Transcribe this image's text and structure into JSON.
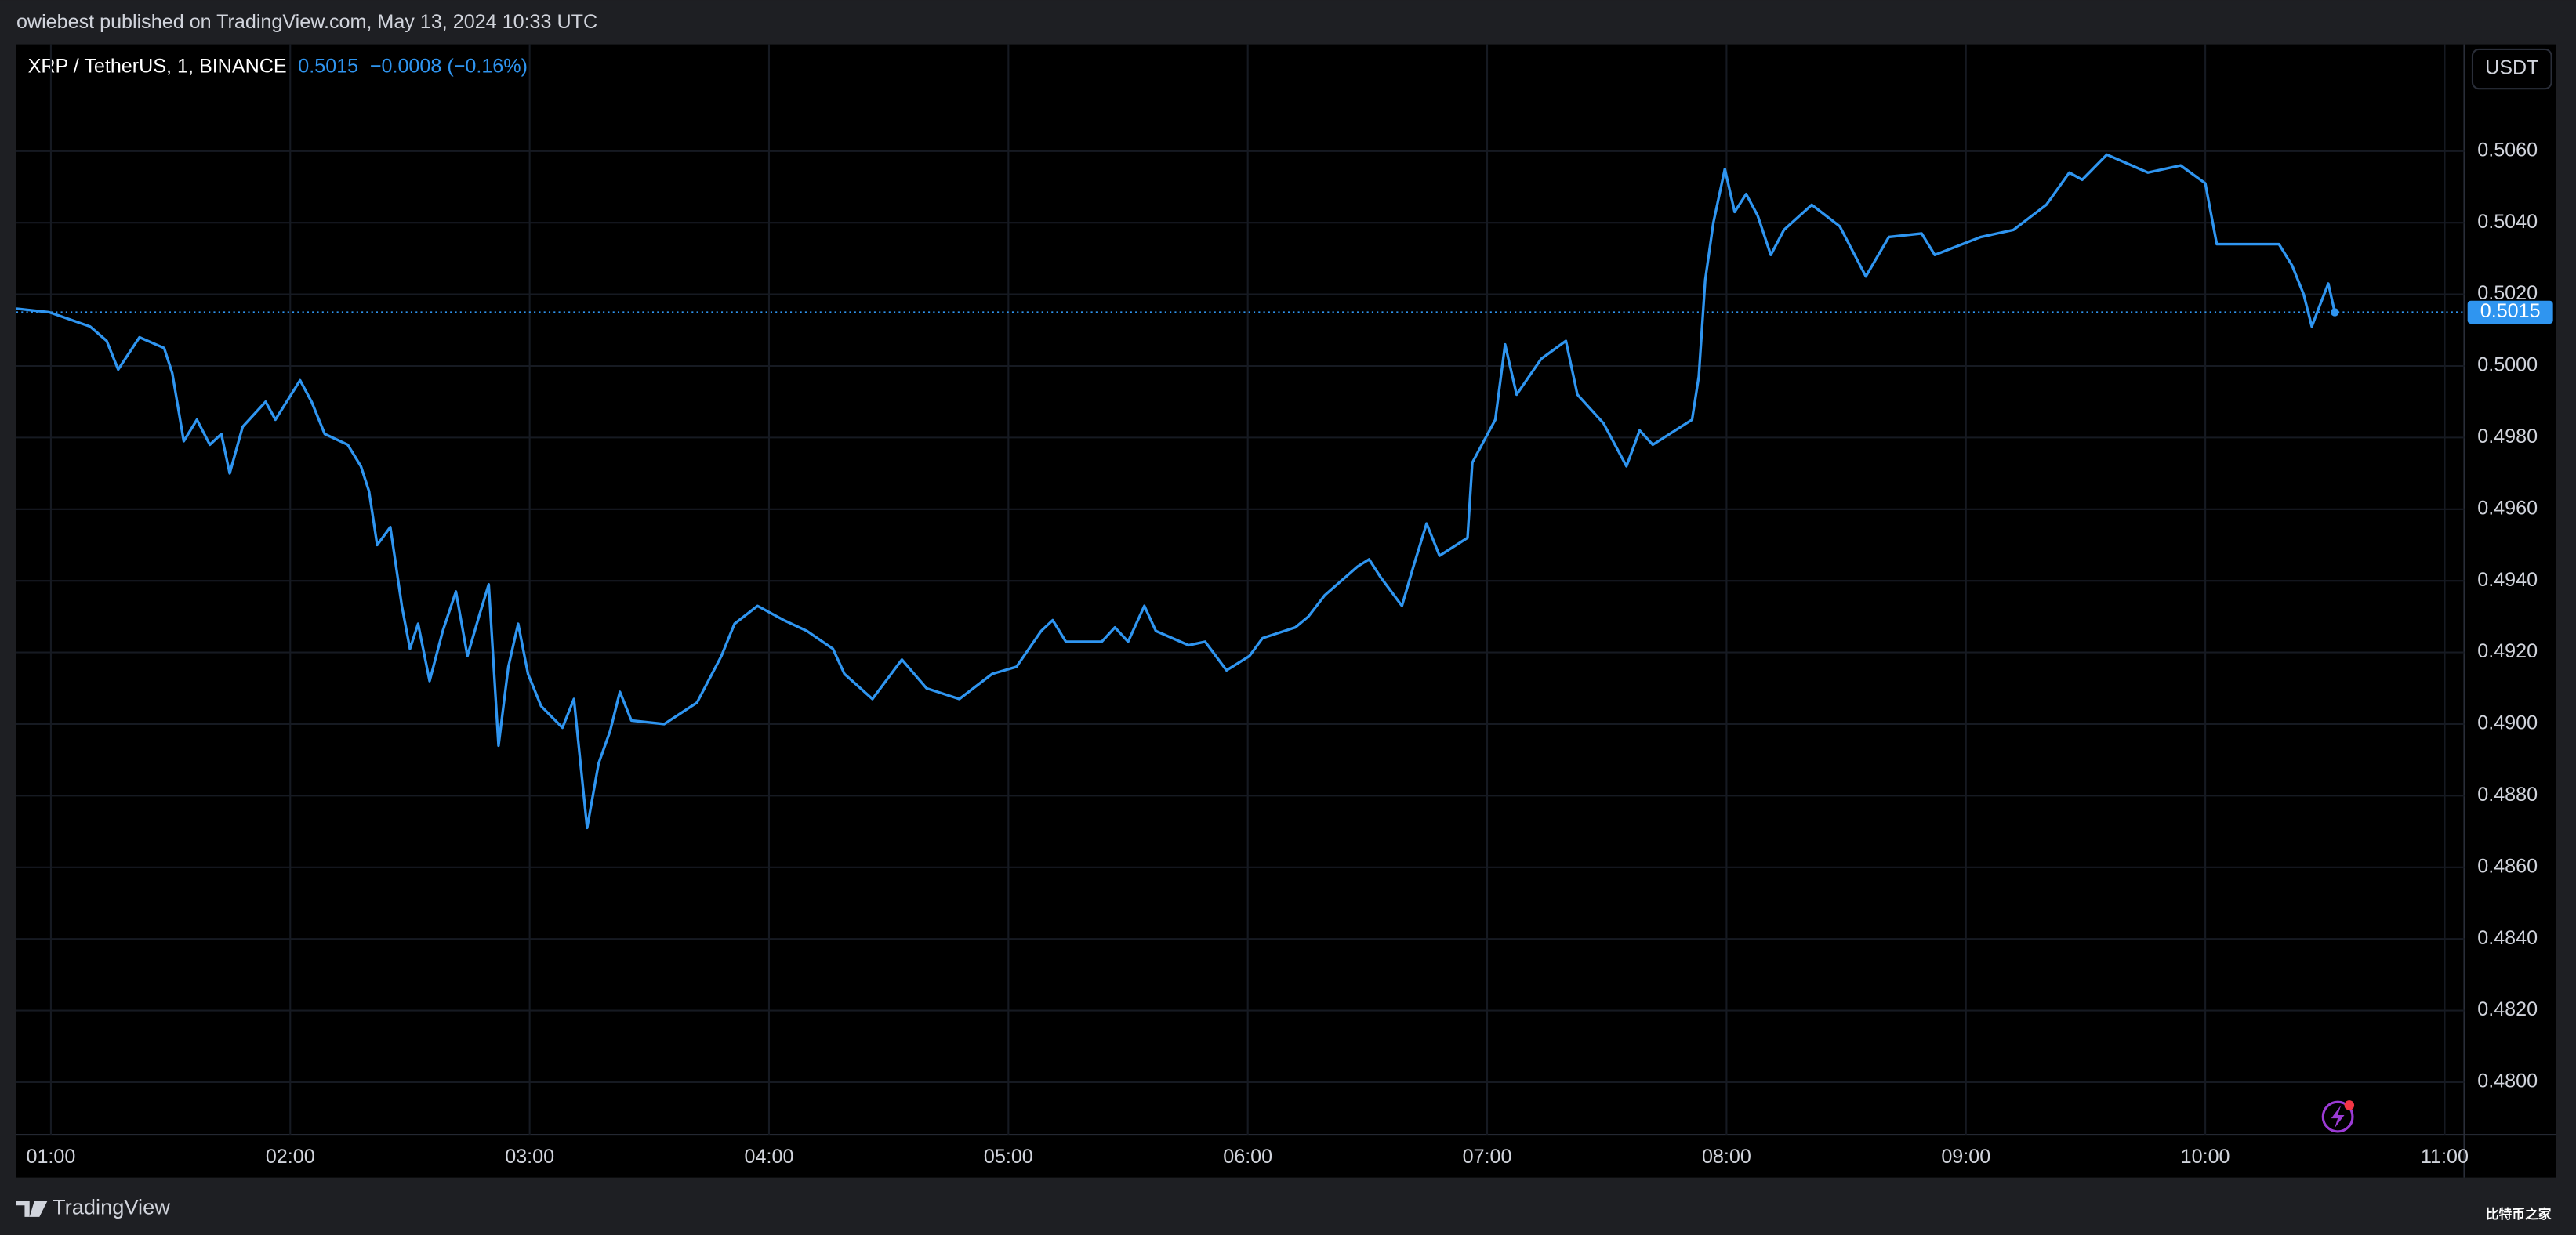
{
  "header": {
    "published": "owiebest published on TradingView.com, May 13, 2024 10:33 UTC"
  },
  "footer": {
    "brand": "TradingView",
    "watermark": "比特币之家"
  },
  "chart_data": {
    "type": "line",
    "title": "XRP / TetherUS, 1, BINANCE",
    "last_price": 0.5015,
    "change": "−0.0008 (−0.16%)",
    "currency": "USDT",
    "color": "#2f95f0",
    "grid": true,
    "xlim": [
      0.856,
      11.082
    ],
    "ylim": [
      0.47853,
      0.50898
    ],
    "xticks": [
      {
        "value": 1,
        "label": "01:00"
      },
      {
        "value": 2,
        "label": "02:00"
      },
      {
        "value": 3,
        "label": "03:00"
      },
      {
        "value": 4,
        "label": "04:00"
      },
      {
        "value": 5,
        "label": "05:00"
      },
      {
        "value": 6,
        "label": "06:00"
      },
      {
        "value": 7,
        "label": "07:00"
      },
      {
        "value": 8,
        "label": "08:00"
      },
      {
        "value": 9,
        "label": "09:00"
      },
      {
        "value": 10,
        "label": "10:00"
      },
      {
        "value": 11,
        "label": "11:00"
      }
    ],
    "yticks": [
      {
        "value": 0.48,
        "label": "0.4800"
      },
      {
        "value": 0.482,
        "label": "0.4820"
      },
      {
        "value": 0.484,
        "label": "0.4840"
      },
      {
        "value": 0.486,
        "label": "0.4860"
      },
      {
        "value": 0.488,
        "label": "0.4880"
      },
      {
        "value": 0.49,
        "label": "0.4900"
      },
      {
        "value": 0.492,
        "label": "0.4920"
      },
      {
        "value": 0.494,
        "label": "0.4940"
      },
      {
        "value": 0.496,
        "label": "0.4960"
      },
      {
        "value": 0.498,
        "label": "0.4980"
      },
      {
        "value": 0.5,
        "label": "0.5000"
      },
      {
        "value": 0.502,
        "label": "0.5020"
      },
      {
        "value": 0.504,
        "label": "0.5040"
      },
      {
        "value": 0.506,
        "label": "0.5060"
      }
    ],
    "x": [
      0.856,
      0.993,
      1.164,
      1.233,
      1.281,
      1.37,
      1.473,
      1.507,
      1.555,
      1.61,
      1.664,
      1.712,
      1.747,
      1.801,
      1.897,
      1.938,
      2.041,
      2.089,
      2.144,
      2.24,
      2.295,
      2.329,
      2.363,
      2.418,
      2.466,
      2.5,
      2.534,
      2.582,
      2.637,
      2.692,
      2.74,
      2.788,
      2.829,
      2.87,
      2.911,
      2.952,
      2.993,
      3.048,
      3.137,
      3.185,
      3.24,
      3.288,
      3.336,
      3.377,
      3.425,
      3.562,
      3.699,
      3.801,
      3.856,
      3.952,
      4.062,
      4.158,
      4.267,
      4.315,
      4.432,
      4.555,
      4.658,
      4.795,
      4.932,
      5.034,
      5.137,
      5.185,
      5.24,
      5.39,
      5.445,
      5.5,
      5.568,
      5.616,
      5.753,
      5.822,
      5.911,
      6.007,
      6.062,
      6.199,
      6.253,
      6.322,
      6.459,
      6.507,
      6.555,
      6.644,
      6.692,
      6.747,
      6.801,
      6.918,
      6.938,
      7.034,
      7.075,
      7.123,
      7.226,
      7.329,
      7.377,
      7.486,
      7.582,
      7.637,
      7.692,
      7.856,
      7.884,
      7.911,
      7.945,
      7.993,
      8.034,
      8.082,
      8.13,
      8.185,
      8.24,
      8.356,
      8.473,
      8.582,
      8.678,
      8.815,
      8.87,
      9.062,
      9.199,
      9.336,
      9.432,
      9.486,
      9.589,
      9.692,
      9.76,
      9.897,
      10.0,
      10.048,
      10.171,
      10.308,
      10.363,
      10.411,
      10.445,
      10.479,
      10.514,
      10.541
    ],
    "values": [
      0.5016,
      0.5015,
      0.5011,
      0.5007,
      0.4999,
      0.5008,
      0.5005,
      0.4998,
      0.4979,
      0.4985,
      0.4978,
      0.4981,
      0.497,
      0.4983,
      0.499,
      0.4985,
      0.4996,
      0.499,
      0.4981,
      0.4978,
      0.4972,
      0.4965,
      0.495,
      0.4955,
      0.4933,
      0.4921,
      0.4928,
      0.4912,
      0.4926,
      0.4937,
      0.4919,
      0.493,
      0.4939,
      0.4894,
      0.4916,
      0.4928,
      0.4914,
      0.4905,
      0.4899,
      0.4907,
      0.4871,
      0.4889,
      0.4898,
      0.4909,
      0.4901,
      0.49,
      0.4906,
      0.4919,
      0.4928,
      0.4933,
      0.4929,
      0.4926,
      0.4921,
      0.4914,
      0.4907,
      0.4918,
      0.491,
      0.4907,
      0.4914,
      0.4916,
      0.4926,
      0.4929,
      0.4923,
      0.4923,
      0.4927,
      0.4923,
      0.4933,
      0.4926,
      0.4922,
      0.4923,
      0.4915,
      0.4919,
      0.4924,
      0.4927,
      0.493,
      0.4936,
      0.4944,
      0.4946,
      0.4941,
      0.4933,
      0.4944,
      0.4956,
      0.4947,
      0.4952,
      0.4973,
      0.4985,
      0.5006,
      0.4992,
      0.5002,
      0.5007,
      0.4992,
      0.4984,
      0.4972,
      0.4982,
      0.4978,
      0.4985,
      0.4997,
      0.5024,
      0.504,
      0.5055,
      0.5043,
      0.5048,
      0.5042,
      0.5031,
      0.5038,
      0.5045,
      0.5039,
      0.5025,
      0.5036,
      0.5037,
      0.5031,
      0.5036,
      0.5038,
      0.5045,
      0.5054,
      0.5052,
      0.5059,
      0.5056,
      0.5054,
      0.5056,
      0.5051,
      0.5034,
      0.5034,
      0.5034,
      0.5028,
      0.502,
      0.5011,
      0.5017,
      0.5023,
      0.5015
    ]
  }
}
